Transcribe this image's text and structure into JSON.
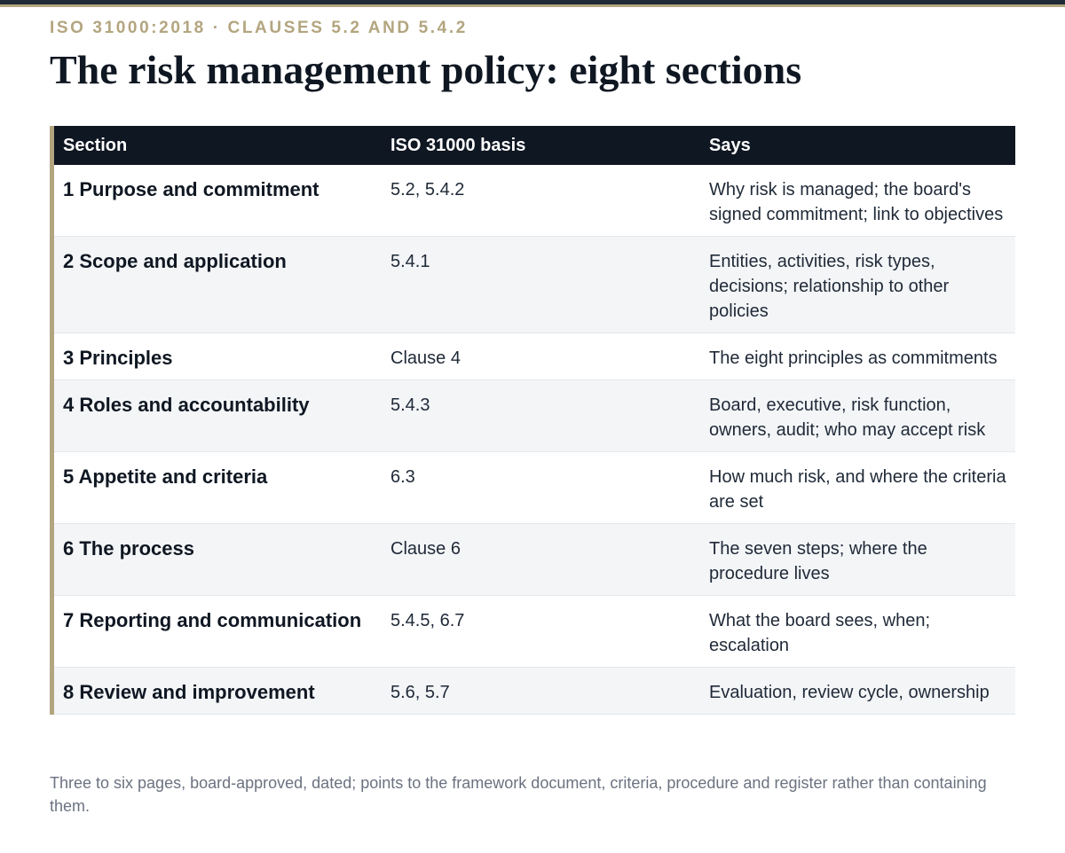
{
  "header": {
    "eyebrow": "ISO 31000:2018 · CLAUSES 5.2 AND 5.4.2",
    "title": "The risk management policy: eight sections"
  },
  "table": {
    "columns": [
      "Section",
      "ISO 31000 basis",
      "Says"
    ],
    "rows": [
      {
        "section": "1 Purpose and commitment",
        "basis": "5.2, 5.4.2",
        "says": "Why risk is managed; the board's signed commitment; link to objectives"
      },
      {
        "section": "2 Scope and application",
        "basis": "5.4.1",
        "says": "Entities, activities, risk types, decisions; relationship to other policies"
      },
      {
        "section": "3 Principles",
        "basis": "Clause 4",
        "says": "The eight principles as commitments"
      },
      {
        "section": "4 Roles and accountability",
        "basis": "5.4.3",
        "says": "Board, executive, risk function, owners, audit; who may accept risk"
      },
      {
        "section": "5 Appetite and criteria",
        "basis": "6.3",
        "says": "How much risk, and where the criteria are set"
      },
      {
        "section": "6 The process",
        "basis": "Clause 6",
        "says": "The seven steps; where the procedure lives"
      },
      {
        "section": "7 Reporting and communication",
        "basis": "5.4.5, 6.7",
        "says": "What the board sees, when; escalation"
      },
      {
        "section": "8 Review and improvement",
        "basis": "5.6, 5.7",
        "says": "Evaluation, review cycle, ownership"
      }
    ]
  },
  "footnote": "Three to six pages, board-approved, dated; points to the framework document, criteria, procedure and register rather than containing them.",
  "colors": {
    "accent": "#b3a57f",
    "header_bg": "#0f1722",
    "stripe": "#f3f5f7"
  }
}
